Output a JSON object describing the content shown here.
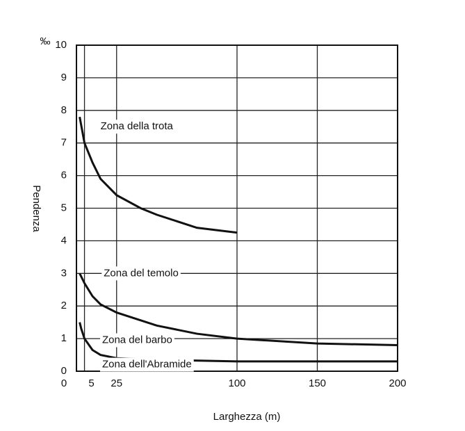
{
  "chart_data": {
    "type": "line",
    "x_label": "Larghezza (m)",
    "y_label": "Pendenza",
    "y_unit": "‰",
    "xlim": [
      0,
      200
    ],
    "xticks": [
      0,
      5,
      25,
      100,
      150,
      200
    ],
    "ylim": [
      0,
      10
    ],
    "yticks": [
      0,
      1,
      2,
      3,
      4,
      5,
      6,
      7,
      8,
      9,
      10
    ],
    "grid": true,
    "series": [
      {
        "color": "#111111",
        "x": [
          2,
          5,
          10,
          15,
          25,
          40,
          50,
          75,
          100
        ],
        "values": [
          7.8,
          7.0,
          6.4,
          5.9,
          5.4,
          5.0,
          4.8,
          4.4,
          4.25
        ]
      },
      {
        "color": "#111111",
        "x": [
          2,
          5,
          10,
          15,
          25,
          50,
          75,
          100,
          150,
          200
        ],
        "values": [
          3.0,
          2.7,
          2.3,
          2.05,
          1.8,
          1.4,
          1.15,
          1.0,
          0.85,
          0.8
        ]
      },
      {
        "color": "#111111",
        "x": [
          2,
          3,
          5,
          10,
          15,
          25,
          50,
          100,
          150,
          200
        ],
        "values": [
          1.5,
          1.3,
          1.0,
          0.65,
          0.5,
          0.4,
          0.35,
          0.3,
          0.3,
          0.3
        ]
      }
    ],
    "annotations": [
      {
        "text": "Zona della trota",
        "x": 15,
        "y": 7.5
      },
      {
        "text": "Zona del temolo",
        "x": 17,
        "y": 3.0
      },
      {
        "text": "Zona del barbo",
        "x": 16,
        "y": 0.95
      },
      {
        "text": "Zona dell'Abramide",
        "x": 16,
        "y": 0.2
      }
    ]
  }
}
